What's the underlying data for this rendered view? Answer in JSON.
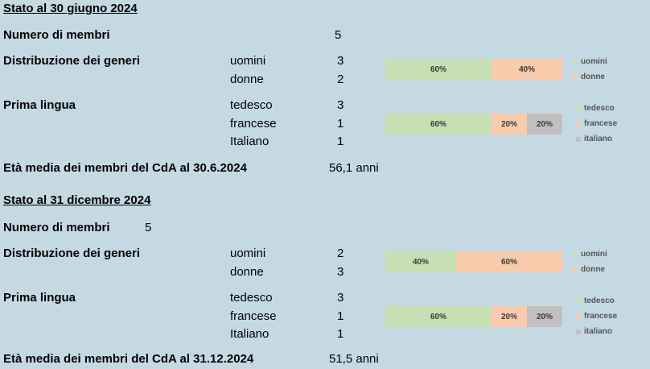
{
  "colors": {
    "green": "#c6e0b4",
    "peach": "#f8cbad",
    "gray": "#c0c0c0",
    "background": "#c5d9e3"
  },
  "section1": {
    "title": "Stato al 30 giugno 2024",
    "members_label": "Numero di membri",
    "members_value": "5",
    "gender_label": "Distribuzione dei generi",
    "men_label": "uomini",
    "men_value": "3",
    "women_label": "donne",
    "women_value": "2",
    "gender_bar": [
      "60%",
      "40%"
    ],
    "gender_legend": [
      "uomini",
      "donne"
    ],
    "language_label": "Prima lingua",
    "german_label": "tedesco",
    "german_value": "3",
    "french_label": "francese",
    "french_value": "1",
    "italian_label": "Italiano",
    "italian_value": "1",
    "language_bar": [
      "60%",
      "20%",
      "20%"
    ],
    "language_legend": [
      "tedesco",
      "francese",
      "italiano"
    ],
    "age_label": "Età media dei membri del CdA al 30.6.2024",
    "age_value": "56,1 anni"
  },
  "section2": {
    "title": "Stato al 31 dicembre 2024",
    "members_label": "Numero di membri",
    "members_value": "5",
    "gender_label": "Distribuzione dei generi",
    "men_label": "uomini",
    "men_value": "2",
    "women_label": "donne",
    "women_value": "3",
    "gender_bar": [
      "40%",
      "60%"
    ],
    "gender_legend": [
      "uomini",
      "donne"
    ],
    "language_label": "Prima lingua",
    "german_label": "tedesco",
    "german_value": "3",
    "french_label": "francese",
    "french_value": "1",
    "italian_label": "Italiano",
    "italian_value": "1",
    "language_bar": [
      "60%",
      "20%",
      "20%"
    ],
    "language_legend": [
      "tedesco",
      "francese",
      "italiano"
    ],
    "age_label": "Età media dei membri del CdA al 31.12.2024",
    "age_value": "51,5 anni"
  }
}
